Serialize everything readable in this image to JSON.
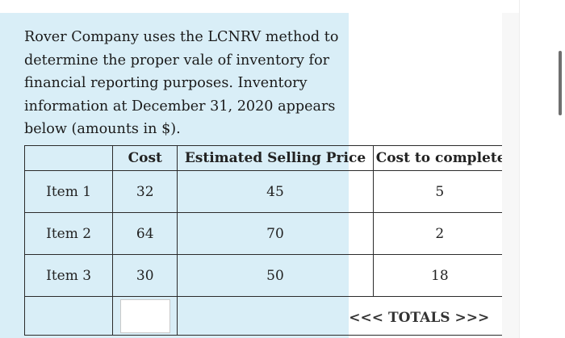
{
  "question": {
    "text": "Rover Company uses the LCNRV method to determine the proper vale of inventory for financial reporting purposes. Inventory information at December 31, 2020 appears below (amounts in $)."
  },
  "table": {
    "headers": [
      "",
      "Cost",
      "Estimated Selling Price",
      "Cost to complete"
    ],
    "rows": [
      {
        "item": "Item 1",
        "cost": "32",
        "esp": "45",
        "ctc": "5"
      },
      {
        "item": "Item 2",
        "cost": "64",
        "esp": "70",
        "ctc": "2"
      },
      {
        "item": "Item 3",
        "cost": "30",
        "esp": "50",
        "ctc": "18"
      }
    ],
    "totals_label": "<<< TOTALS >>>",
    "total_input_value": ""
  },
  "colors": {
    "highlight": "#d9eef7",
    "text": "#1b1b1b",
    "border": "#2b2b2b"
  }
}
